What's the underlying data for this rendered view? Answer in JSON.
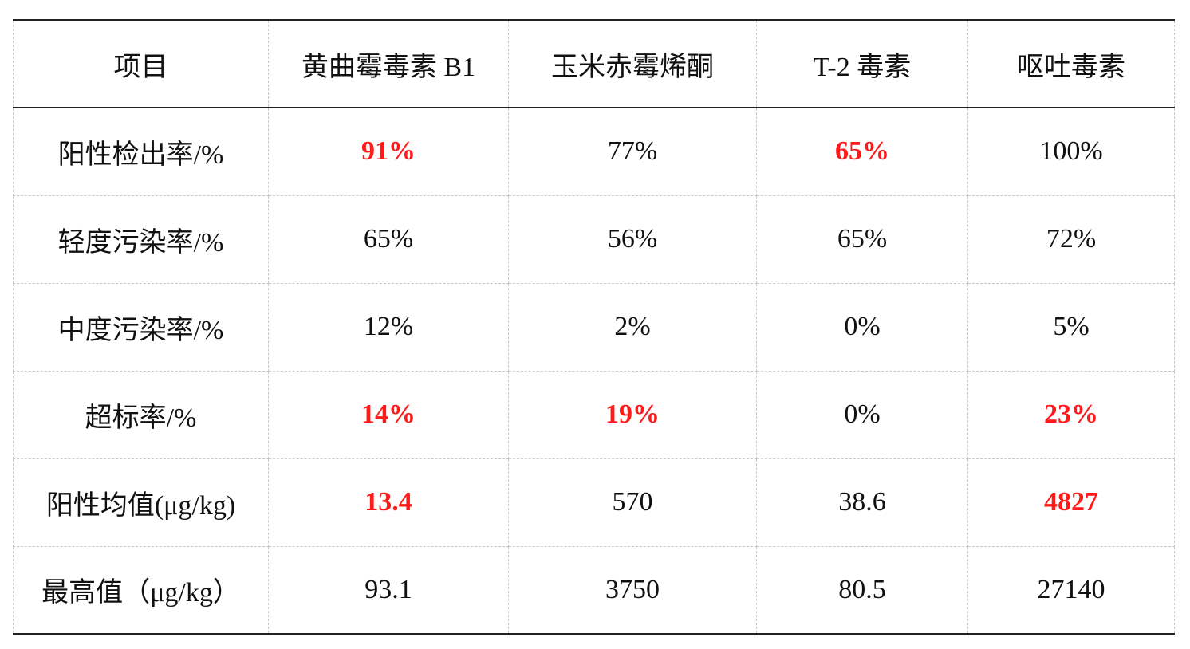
{
  "table": {
    "headers": [
      "项目",
      "黄曲霉毒素 B1",
      "玉米赤霉烯酮",
      "T-2 毒素",
      "呕吐毒素"
    ],
    "rows": [
      {
        "label": "阳性检出率/%",
        "cells": [
          {
            "value": "91%",
            "highlight": true
          },
          {
            "value": "77%",
            "highlight": false
          },
          {
            "value": "65%",
            "highlight": true
          },
          {
            "value": "100%",
            "highlight": false
          }
        ]
      },
      {
        "label": "轻度污染率/%",
        "cells": [
          {
            "value": "65%",
            "highlight": false
          },
          {
            "value": "56%",
            "highlight": false
          },
          {
            "value": "65%",
            "highlight": false
          },
          {
            "value": "72%",
            "highlight": false
          }
        ]
      },
      {
        "label": "中度污染率/%",
        "cells": [
          {
            "value": "12%",
            "highlight": false
          },
          {
            "value": "2%",
            "highlight": false
          },
          {
            "value": "0%",
            "highlight": false
          },
          {
            "value": "5%",
            "highlight": false
          }
        ]
      },
      {
        "label": "超标率/%",
        "cells": [
          {
            "value": "14%",
            "highlight": true
          },
          {
            "value": "19%",
            "highlight": true
          },
          {
            "value": "0%",
            "highlight": false
          },
          {
            "value": "23%",
            "highlight": true
          }
        ]
      },
      {
        "label": "阳性均值(μg/kg)",
        "cells": [
          {
            "value": "13.4",
            "highlight": true
          },
          {
            "value": "570",
            "highlight": false
          },
          {
            "value": "38.6",
            "highlight": false
          },
          {
            "value": "4827",
            "highlight": true
          }
        ]
      },
      {
        "label": "最高值（μg/kg）",
        "cells": [
          {
            "value": "93.1",
            "highlight": false
          },
          {
            "value": "3750",
            "highlight": false
          },
          {
            "value": "80.5",
            "highlight": false
          },
          {
            "value": "27140",
            "highlight": false
          }
        ]
      }
    ]
  },
  "colors": {
    "highlight": "#ff1a1a",
    "text": "#111111",
    "rule": "#222222",
    "grid": "#c9c9c9"
  }
}
